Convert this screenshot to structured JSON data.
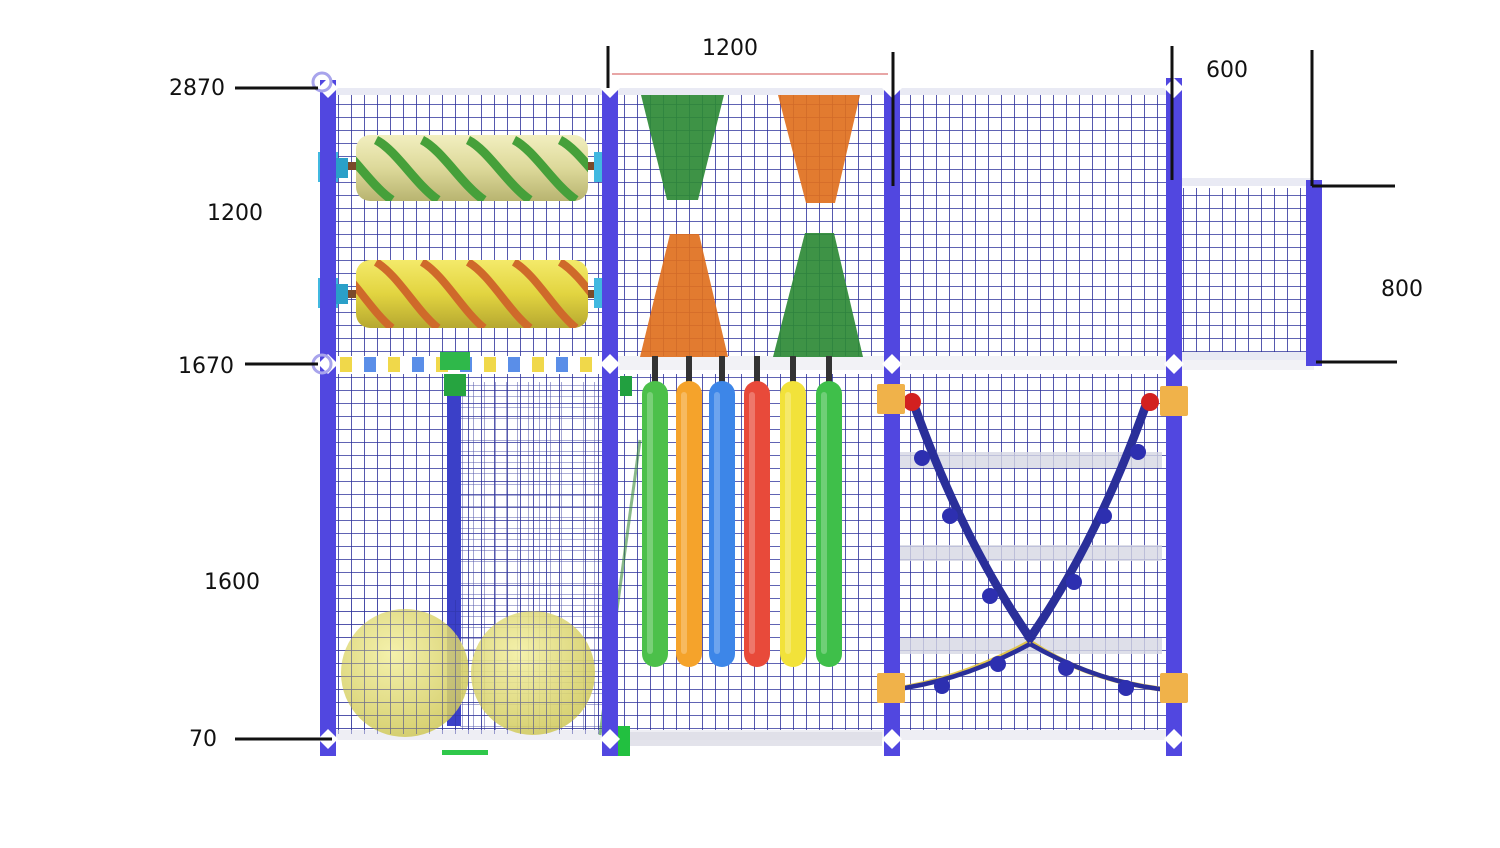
{
  "dimensions": {
    "left": {
      "top_height": "2870",
      "upper_section": "1200",
      "mid_height": "1670",
      "lower_section": "1600",
      "base_height": "70"
    },
    "top_width": "1200",
    "extension_width": "600",
    "extension_height": "800"
  },
  "colors": {
    "frame": "#5147e0",
    "net": "#2b2f9a",
    "roller_green": "#3a9a3c",
    "roller_yellow": "#e6d84a",
    "roller_orange": "#d0652a",
    "cone_green": "#2e8a36",
    "cone_orange": "#e0701e",
    "ball": "#e4df74",
    "rope": "#2a2f9a",
    "bracket": "#f0b24a",
    "pads": [
      "#4cc04a",
      "#f5a32b",
      "#3d86e8",
      "#e84a3a",
      "#f2e23a",
      "#3fbf4a"
    ]
  },
  "elements": {
    "rollers": [
      "roller-green-stripes",
      "roller-orange-stripes"
    ],
    "cones": [
      "cone-green",
      "cone-orange",
      "cone-orange",
      "cone-green"
    ],
    "balls": 2,
    "punching_pads": 6,
    "rope_bridge": "x-rope-net"
  }
}
